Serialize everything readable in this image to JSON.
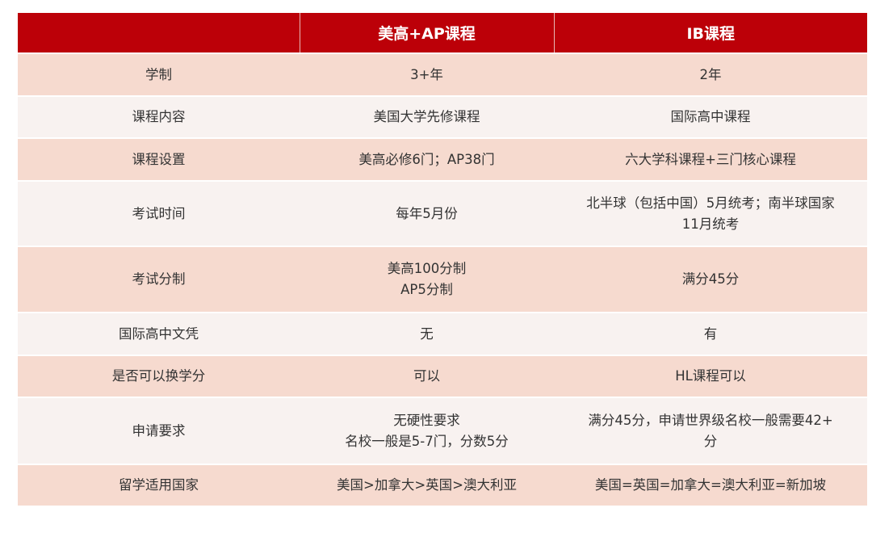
{
  "header": [
    "",
    "美高+AP课程",
    "IB课程"
  ],
  "colors": {
    "header_bg": "#BC0008",
    "row_dark": "#F6DACF",
    "row_light": "#F8F2F0"
  },
  "rows": [
    {
      "label": "学制",
      "ap": [
        "3+年"
      ],
      "ib": [
        "2年"
      ]
    },
    {
      "label": "课程内容",
      "ap": [
        "美国大学先修课程"
      ],
      "ib": [
        "国际高中课程"
      ]
    },
    {
      "label": "课程设置",
      "ap": [
        "美高必修6门；AP38门"
      ],
      "ib": [
        "六大学科课程+三门核心课程"
      ]
    },
    {
      "label": "考试时间",
      "ap": [
        "每年5月份"
      ],
      "ib": [
        "北半球（包括中国）5月统考；南半球国家",
        "11月统考"
      ]
    },
    {
      "label": "考试分制",
      "ap": [
        "美高100分制",
        "AP5分制"
      ],
      "ib": [
        "满分45分"
      ]
    },
    {
      "label": "国际高中文凭",
      "ap": [
        "无"
      ],
      "ib": [
        "有"
      ]
    },
    {
      "label": "是否可以换学分",
      "ap": [
        "可以"
      ],
      "ib": [
        "HL课程可以"
      ]
    },
    {
      "label": "申请要求",
      "ap": [
        "无硬性要求",
        "名校一般是5-7门，分数5分"
      ],
      "ib": [
        "满分45分，申请世界级名校一般需要42+",
        "分"
      ]
    },
    {
      "label": "留学适用国家",
      "ap": [
        "美国>加拿大>英国>澳大利亚"
      ],
      "ib": [
        "美国=英国=加拿大=澳大利亚=新加坡"
      ]
    }
  ]
}
